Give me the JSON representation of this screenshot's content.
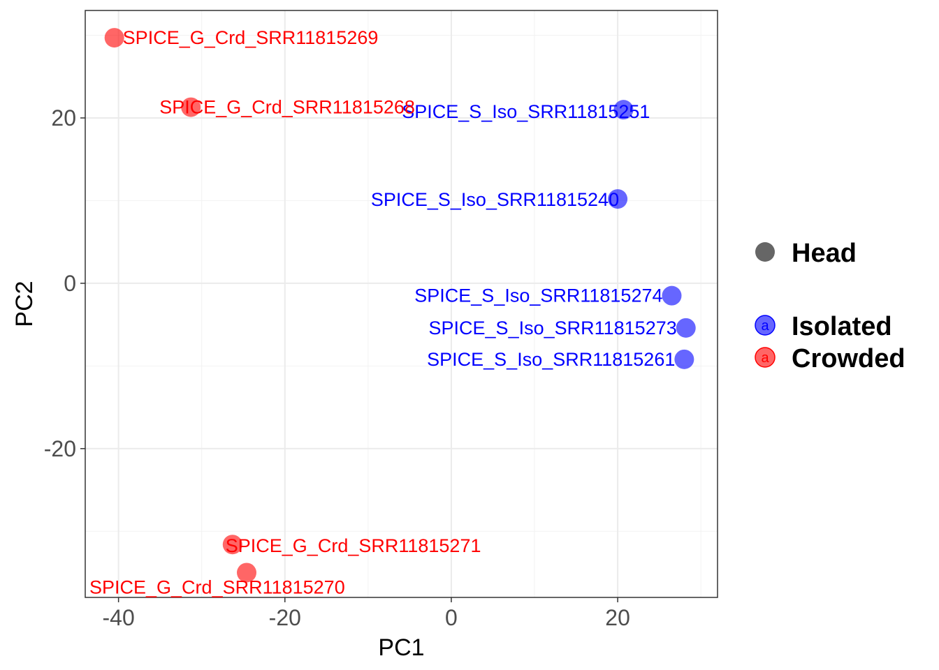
{
  "chart_data": {
    "type": "scatter",
    "xlabel": "PC1",
    "ylabel": "PC2",
    "xlim": [
      -44,
      32
    ],
    "ylim": [
      -38,
      33
    ],
    "x_ticks": [
      -40,
      -20,
      0,
      20
    ],
    "x_tick_labels": [
      "-40",
      "-20",
      "0",
      "20"
    ],
    "y_ticks": [
      -20,
      0,
      20
    ],
    "y_tick_labels": [
      "-20",
      "0",
      "20"
    ],
    "grid": true,
    "legend_position": "right",
    "legend": {
      "shape_entries": [
        {
          "label": "Head",
          "color": "#666666"
        }
      ],
      "color_entries": [
        {
          "label": "Isolated",
          "color": "#0000ff",
          "key_glyph": "a"
        },
        {
          "label": "Crowded",
          "color": "#ff0000",
          "key_glyph": "a"
        }
      ]
    },
    "series": [
      {
        "name": "Isolated",
        "color": "#0000ff",
        "points": [
          {
            "label": "SPICE_S_Iso_SRR11815251",
            "x": 20.7,
            "y": 21.0
          },
          {
            "label": "SPICE_S_Iso_SRR11815240",
            "x": 20.0,
            "y": 10.2
          },
          {
            "label": "SPICE_S_Iso_SRR11815274",
            "x": 26.5,
            "y": -1.5
          },
          {
            "label": "SPICE_S_Iso_SRR11815273",
            "x": 28.2,
            "y": -5.4
          },
          {
            "label": "SPICE_S_Iso_SRR11815261",
            "x": 28.0,
            "y": -9.2
          }
        ]
      },
      {
        "name": "Crowded",
        "color": "#ff0000",
        "points": [
          {
            "label": "SPICE_G_Crd_SRR11815269",
            "x": -40.5,
            "y": 29.7
          },
          {
            "label": "SPICE_G_Crd_SRR11815268",
            "x": -31.3,
            "y": 21.3
          },
          {
            "label": "SPICE_G_Crd_SRR11815271",
            "x": -26.3,
            "y": -31.6
          },
          {
            "label": "SPICE_G_Crd_SRR11815270",
            "x": -24.6,
            "y": -35.0
          }
        ]
      }
    ]
  }
}
